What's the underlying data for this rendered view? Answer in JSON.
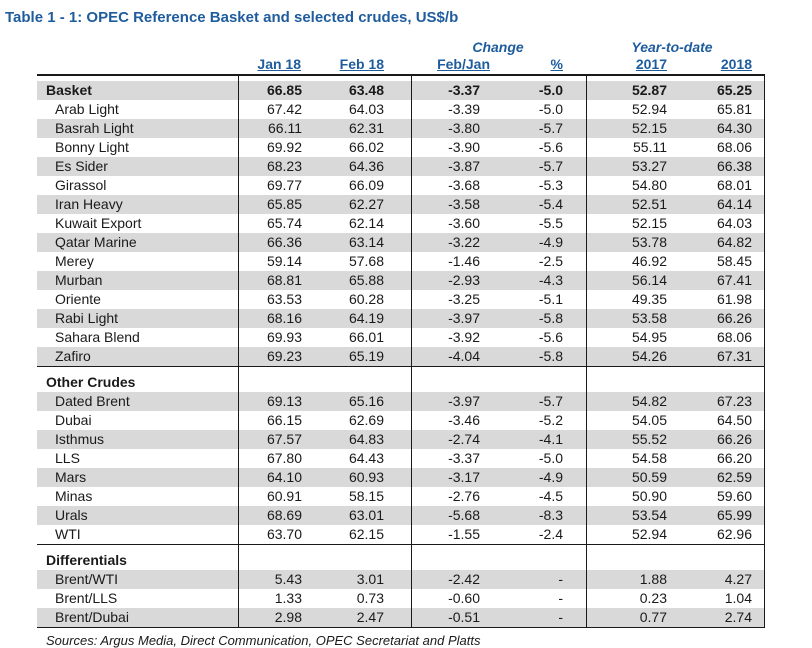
{
  "title": "Table 1 - 1: OPEC Reference Basket and selected crudes, US$/b",
  "headers": {
    "change": "Change",
    "ytd": "Year-to-date",
    "columns": [
      "Jan 18",
      "Feb 18",
      "Feb/Jan",
      "%",
      "2017",
      "2018"
    ]
  },
  "sections": [
    {
      "name": "Basket",
      "values": [
        "66.85",
        "63.48",
        "-3.37",
        "-5.0",
        "52.87",
        "65.25"
      ],
      "rows": [
        {
          "name": "Arab Light",
          "values": [
            "67.42",
            "64.03",
            "-3.39",
            "-5.0",
            "52.94",
            "65.81"
          ]
        },
        {
          "name": "Basrah Light",
          "values": [
            "66.11",
            "62.31",
            "-3.80",
            "-5.7",
            "52.15",
            "64.30"
          ]
        },
        {
          "name": "Bonny Light",
          "values": [
            "69.92",
            "66.02",
            "-3.90",
            "-5.6",
            "55.11",
            "68.06"
          ]
        },
        {
          "name": "Es Sider",
          "values": [
            "68.23",
            "64.36",
            "-3.87",
            "-5.7",
            "53.27",
            "66.38"
          ]
        },
        {
          "name": "Girassol",
          "values": [
            "69.77",
            "66.09",
            "-3.68",
            "-5.3",
            "54.80",
            "68.01"
          ]
        },
        {
          "name": "Iran Heavy",
          "values": [
            "65.85",
            "62.27",
            "-3.58",
            "-5.4",
            "52.51",
            "64.14"
          ]
        },
        {
          "name": "Kuwait Export",
          "values": [
            "65.74",
            "62.14",
            "-3.60",
            "-5.5",
            "52.15",
            "64.03"
          ]
        },
        {
          "name": "Qatar Marine",
          "values": [
            "66.36",
            "63.14",
            "-3.22",
            "-4.9",
            "53.78",
            "64.82"
          ]
        },
        {
          "name": "Merey",
          "values": [
            "59.14",
            "57.68",
            "-1.46",
            "-2.5",
            "46.92",
            "58.45"
          ]
        },
        {
          "name": "Murban",
          "values": [
            "68.81",
            "65.88",
            "-2.93",
            "-4.3",
            "56.14",
            "67.41"
          ]
        },
        {
          "name": "Oriente",
          "values": [
            "63.53",
            "60.28",
            "-3.25",
            "-5.1",
            "49.35",
            "61.98"
          ]
        },
        {
          "name": "Rabi Light",
          "values": [
            "68.16",
            "64.19",
            "-3.97",
            "-5.8",
            "53.58",
            "66.26"
          ]
        },
        {
          "name": "Sahara Blend",
          "values": [
            "69.93",
            "66.01",
            "-3.92",
            "-5.6",
            "54.95",
            "68.06"
          ]
        },
        {
          "name": "Zafiro",
          "values": [
            "69.23",
            "65.19",
            "-4.04",
            "-5.8",
            "54.26",
            "67.31"
          ]
        }
      ]
    },
    {
      "name": "Other Crudes",
      "rows": [
        {
          "name": "Dated Brent",
          "values": [
            "69.13",
            "65.16",
            "-3.97",
            "-5.7",
            "54.82",
            "67.23"
          ]
        },
        {
          "name": "Dubai",
          "values": [
            "66.15",
            "62.69",
            "-3.46",
            "-5.2",
            "54.05",
            "64.50"
          ]
        },
        {
          "name": "Isthmus",
          "values": [
            "67.57",
            "64.83",
            "-2.74",
            "-4.1",
            "55.52",
            "66.26"
          ]
        },
        {
          "name": "LLS",
          "values": [
            "67.80",
            "64.43",
            "-3.37",
            "-5.0",
            "54.58",
            "66.20"
          ]
        },
        {
          "name": "Mars",
          "values": [
            "64.10",
            "60.93",
            "-3.17",
            "-4.9",
            "50.59",
            "62.59"
          ]
        },
        {
          "name": "Minas",
          "values": [
            "60.91",
            "58.15",
            "-2.76",
            "-4.5",
            "50.90",
            "59.60"
          ]
        },
        {
          "name": "Urals",
          "values": [
            "68.69",
            "63.01",
            "-5.68",
            "-8.3",
            "53.54",
            "65.99"
          ]
        },
        {
          "name": "WTI",
          "values": [
            "63.70",
            "62.15",
            "-1.55",
            "-2.4",
            "52.94",
            "62.96"
          ]
        }
      ]
    },
    {
      "name": "Differentials",
      "rows": [
        {
          "name": "Brent/WTI",
          "values": [
            "5.43",
            "3.01",
            "-2.42",
            "-",
            "1.88",
            "4.27"
          ]
        },
        {
          "name": "Brent/LLS",
          "values": [
            "1.33",
            "0.73",
            "-0.60",
            "-",
            "0.23",
            "1.04"
          ]
        },
        {
          "name": "Brent/Dubai",
          "values": [
            "2.98",
            "2.47",
            "-0.51",
            "-",
            "0.77",
            "2.74"
          ]
        }
      ]
    }
  ],
  "sources": "Sources: Argus Media, Direct Communication, OPEC Secretariat and Platts",
  "colors": {
    "accent": "#1f5c9e",
    "row_shade": "#d9d9d9",
    "text": "#1a1a1a"
  }
}
